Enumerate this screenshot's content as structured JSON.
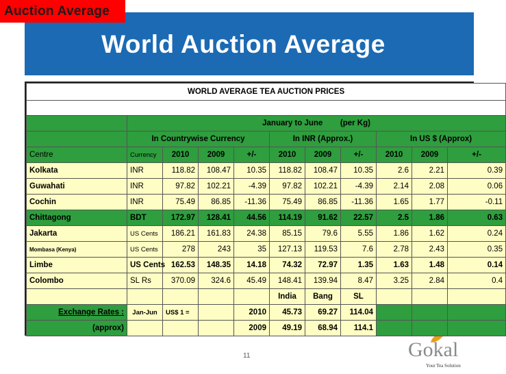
{
  "tag": "Auction Average",
  "title": "World Auction Average",
  "table_title": "WORLD AVERAGE TEA AUCTION PRICES",
  "period": "January to June",
  "unit": "(per Kg)",
  "groups": {
    "local": "In Countrywise Currency",
    "inr": "In INR (Approx.)",
    "usd": "In US $ (Approx)"
  },
  "headers": {
    "centre": "Centre",
    "currency": "Currency",
    "y2010": "2010",
    "y2009": "2009",
    "diff": "+/-"
  },
  "rows": [
    [
      "Kolkata",
      "INR",
      "118.82",
      "108.47",
      "10.35",
      "118.82",
      "108.47",
      "10.35",
      "2.6",
      "2.21",
      "0.39"
    ],
    [
      "Guwahati",
      "INR",
      "97.82",
      "102.21",
      "-4.39",
      "97.82",
      "102.21",
      "-4.39",
      "2.14",
      "2.08",
      "0.06"
    ],
    [
      "Cochin",
      "INR",
      "75.49",
      "86.85",
      "-11.36",
      "75.49",
      "86.85",
      "-11.36",
      "1.65",
      "1.77",
      "-0.11"
    ],
    [
      "Chittagong",
      "BDT",
      "172.97",
      "128.41",
      "44.56",
      "114.19",
      "91.62",
      "22.57",
      "2.5",
      "1.86",
      "0.63"
    ],
    [
      "Jakarta",
      "US Cents",
      "186.21",
      "161.83",
      "24.38",
      "85.15",
      "79.6",
      "5.55",
      "1.86",
      "1.62",
      "0.24"
    ],
    [
      "Mombasa (Kenya)",
      "US Cents",
      "278",
      "243",
      "35",
      "127.13",
      "119.53",
      "7.6",
      "2.78",
      "2.43",
      "0.35"
    ],
    [
      "Limbe",
      "US Cents",
      "162.53",
      "148.35",
      "14.18",
      "74.32",
      "72.97",
      "1.35",
      "1.63",
      "1.48",
      "0.14"
    ],
    [
      "Colombo",
      "SL Rs",
      "370.09",
      "324.6",
      "45.49",
      "148.41",
      "139.94",
      "8.47",
      "3.25",
      "2.84",
      "0.4"
    ]
  ],
  "exchange": {
    "countries": [
      "India",
      "Bang",
      "SL"
    ],
    "label": "Exchange Rates :",
    "period": "Jan-Jun",
    "usd": "US$ 1 =",
    "approx": "(approx)",
    "y2010": "2010",
    "y2009": "2009",
    "rates_2010": [
      "45.73",
      "69.27",
      "114.04"
    ],
    "rates_2009": [
      "49.19",
      "68.94",
      "114.1"
    ]
  },
  "page_number": "11",
  "logo": {
    "name": "Gokal",
    "tagline": "Your Tea Solution"
  },
  "colors": {
    "tag_bg": "#ff0000",
    "banner": "#1b6ab3",
    "green": "#2e9e3e",
    "yellow": "#fefdc4"
  }
}
